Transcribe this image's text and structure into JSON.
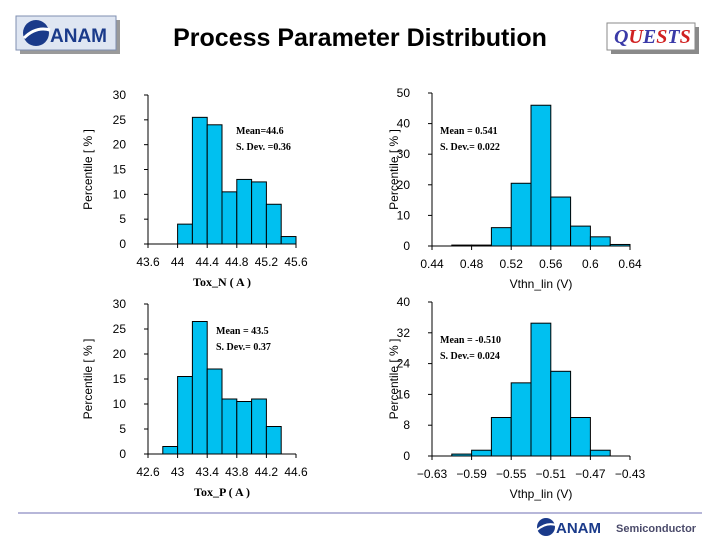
{
  "header": {
    "title": "Process Parameter Distribution",
    "logo_text": "ANAM",
    "right_logo_text": "QUESTS",
    "right_logo_colors": [
      "#3a3aa8",
      "#d02020",
      "#3a3aa8",
      "#d02020",
      "#3a3aa8",
      "#d02020"
    ]
  },
  "footer": {
    "logo_text": "ANAM",
    "suffix": "Semiconductor"
  },
  "colors": {
    "bar_fill": "#00c0f0",
    "bar_stroke": "#000000",
    "logo_blue": "#1a3a8a",
    "logo_light": "#d8e4f8"
  },
  "chart_data": [
    {
      "id": "tox-n",
      "type": "bar",
      "title": "",
      "xlabel": "Tox_N ( A )",
      "ylabel": "Percentile [ % ]",
      "xlim": [
        43.6,
        45.6
      ],
      "ylim": [
        0,
        30
      ],
      "xticks": [
        "43.6",
        "44",
        "44.4",
        "44.8",
        "45.2",
        "45.6"
      ],
      "yticks": [
        "0",
        "5",
        "10",
        "15",
        "20",
        "25",
        "30"
      ],
      "bin_edges": [
        43.6,
        43.8,
        44.0,
        44.2,
        44.4,
        44.6,
        44.8,
        45.0,
        45.2,
        45.4,
        45.6
      ],
      "values": [
        0,
        0,
        4,
        25.5,
        24,
        10.5,
        13,
        12.5,
        8,
        1.5
      ],
      "annotation": [
        "Mean=44.6",
        "S. Dev. =0.36"
      ]
    },
    {
      "id": "vthn-lin",
      "type": "bar",
      "title": "",
      "xlabel": "Vthn_lin (V)",
      "ylabel": "Percentile [ % ]",
      "xlim": [
        0.44,
        0.64
      ],
      "ylim": [
        0,
        50
      ],
      "xticks": [
        "0.44",
        "0.48",
        "0.52",
        "0.56",
        "0.6",
        "0.64"
      ],
      "yticks": [
        "0",
        "10",
        "20",
        "30",
        "40",
        "50"
      ],
      "bin_edges": [
        0.44,
        0.46,
        0.48,
        0.5,
        0.52,
        0.54,
        0.56,
        0.58,
        0.6,
        0.62,
        0.64
      ],
      "values": [
        0,
        0.3,
        0.3,
        6,
        20.5,
        46,
        16,
        6.5,
        3,
        0.5
      ],
      "annotation": [
        "Mean = 0.541",
        "S. Dev.= 0.022"
      ]
    },
    {
      "id": "tox-p",
      "type": "bar",
      "title": "",
      "xlabel": "Tox_P ( A )",
      "ylabel": "Percentile [ % ]",
      "xlim": [
        42.6,
        44.6
      ],
      "ylim": [
        0,
        30
      ],
      "xticks": [
        "42.6",
        "43",
        "43.4",
        "43.8",
        "44.2",
        "44.6"
      ],
      "yticks": [
        "0",
        "5",
        "10",
        "15",
        "20",
        "25",
        "30"
      ],
      "bin_edges": [
        42.6,
        42.8,
        43.0,
        43.2,
        43.4,
        43.6,
        43.8,
        44.0,
        44.2,
        44.4,
        44.6
      ],
      "values": [
        0,
        1.5,
        15.5,
        26.5,
        17,
        11,
        10.5,
        11,
        5.5,
        0
      ],
      "annotation": [
        "Mean = 43.5",
        "S. Dev.= 0.37"
      ]
    },
    {
      "id": "vthp-lin",
      "type": "bar",
      "title": "",
      "xlabel": "Vthp_lin (V)",
      "ylabel": "Percentile [ % ]",
      "xlim": [
        -0.63,
        -0.43
      ],
      "ylim": [
        0,
        40
      ],
      "xticks": [
        "−0.63",
        "−0.59",
        "−0.55",
        "−0.51",
        "−0.47",
        "−0.43"
      ],
      "yticks": [
        "0",
        "8",
        "16",
        "24",
        "32",
        "40"
      ],
      "bin_edges": [
        -0.63,
        -0.61,
        -0.59,
        -0.57,
        -0.55,
        -0.53,
        -0.51,
        -0.49,
        -0.47,
        -0.45,
        -0.43
      ],
      "values": [
        0,
        0.5,
        1.5,
        10,
        19,
        34.5,
        22,
        10,
        1.5,
        0
      ],
      "annotation": [
        "Mean = -0.510",
        "S. Dev.= 0.024"
      ]
    }
  ]
}
